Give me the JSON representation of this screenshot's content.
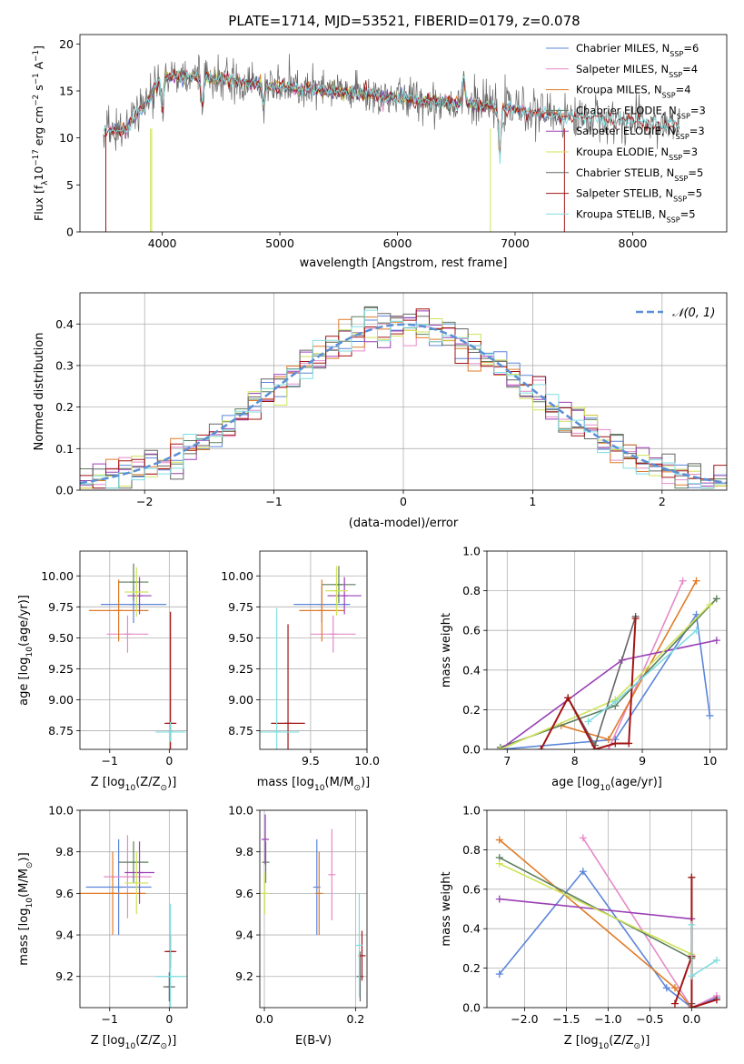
{
  "figure": {
    "title": "PLATE=1714, MJD=53521, FIBERID=0179, z=0.078"
  },
  "model_colors": [
    "#5b85d9",
    "#e58ac8",
    "#e07b28",
    "#5e7f5e",
    "#9a3fb5",
    "#cfe35a",
    "#666666",
    "#a31515",
    "#7fdde0"
  ],
  "chart_data": [
    {
      "id": "spectrum",
      "type": "line",
      "xlabel": "wavelength [Angstrom, rest frame]",
      "ylabel_parts": [
        "Flux [f",
        "λ",
        "10",
        "−17",
        " erg cm",
        "−2",
        " s",
        "−1",
        " A",
        "−1",
        "]"
      ],
      "xlim": [
        3300,
        8800
      ],
      "ylim": [
        0,
        21
      ],
      "xticks": [
        4000,
        5000,
        6000,
        7000,
        8000
      ],
      "yticks": [
        0,
        5,
        10,
        15,
        20
      ],
      "grid": false,
      "legend_position": "upper right",
      "series": [
        {
          "name": "Chabrier MILES, N_SSP=6",
          "label_main": "Chabrier MILES, N",
          "label_sub": "SSP",
          "label_tail": "=6"
        },
        {
          "name": "Salpeter MILES, N_SSP=4",
          "label_main": "Salpeter MILES, N",
          "label_sub": "SSP",
          "label_tail": "=4"
        },
        {
          "name": "Kroupa MILES, N_SSP=4",
          "label_main": "Kroupa MILES, N",
          "label_sub": "SSP",
          "label_tail": "=4"
        },
        {
          "name": "Chabrier ELODIE, N_SSP=3",
          "label_main": "Chabrier ELODIE, N",
          "label_sub": "SSP",
          "label_tail": "=3"
        },
        {
          "name": "Salpeter ELODIE, N_SSP=3",
          "label_main": "Salpeter ELODIE, N",
          "label_sub": "SSP",
          "label_tail": "=3"
        },
        {
          "name": "Kroupa ELODIE, N_SSP=3",
          "label_main": "Kroupa ELODIE, N",
          "label_sub": "SSP",
          "label_tail": "=3"
        },
        {
          "name": "Chabrier STELIB, N_SSP=5",
          "label_main": "Chabrier STELIB, N",
          "label_sub": "SSP",
          "label_tail": "=5"
        },
        {
          "name": "Salpeter STELIB, N_SSP=5",
          "label_main": "Salpeter STELIB, N",
          "label_sub": "SSP",
          "label_tail": "=5"
        },
        {
          "name": "Kroupa STELIB, N_SSP=5",
          "label_main": "Kroupa STELIB, N",
          "label_sub": "SSP",
          "label_tail": "=5"
        }
      ],
      "continuum_x": [
        3500,
        3700,
        3850,
        4000,
        4300,
        4600,
        4900,
        5200,
        5600,
        6000,
        6300,
        6600,
        6900,
        7200,
        7500,
        7800,
        8100,
        8400
      ],
      "continuum_y": [
        10.5,
        11.0,
        13.5,
        16.5,
        16.5,
        16.2,
        15.5,
        15.2,
        14.8,
        14.3,
        13.9,
        13.6,
        13.3,
        12.6,
        12.2,
        12.0,
        11.6,
        11.2
      ]
    },
    {
      "id": "residuals",
      "type": "step",
      "xlabel": "(data-model)/error",
      "ylabel": "Normed distribution",
      "xlim": [
        -2.5,
        2.5
      ],
      "ylim": [
        0,
        0.475
      ],
      "xticks": [
        -2,
        -1,
        0,
        1,
        2
      ],
      "xticklabels": [
        "−2",
        "−1",
        "0",
        "1",
        "2"
      ],
      "yticks": [
        0.0,
        0.1,
        0.2,
        0.3,
        0.4
      ],
      "yticklabels": [
        "0.0",
        "0.1",
        "0.2",
        "0.3",
        "0.4"
      ],
      "grid": true,
      "legend_position": "upper right",
      "reference_curve": {
        "name": "N(0,1)",
        "label": "𝒩(0, 1)",
        "mu": 0,
        "sigma": 1,
        "color": "#5b8fd6"
      },
      "bin_width": 0.1
    },
    {
      "id": "age_vs_Z",
      "type": "errorbar",
      "xlabel_parts": [
        "Z [log",
        "10",
        "(Z/Z",
        "⊙",
        ")]"
      ],
      "ylabel_parts": [
        "age  [log",
        "10",
        "(age/yr)]"
      ],
      "xlim": [
        -1.5,
        0.3
      ],
      "ylim": [
        8.6,
        10.2
      ],
      "xticks": [
        -1,
        0
      ],
      "xticklabels": [
        "−1",
        "0"
      ],
      "yticks": [
        8.75,
        9.0,
        9.25,
        9.5,
        9.75,
        10.0
      ],
      "yticklabels": [
        "8.75",
        "9.00",
        "9.25",
        "9.50",
        "9.75",
        "10.00"
      ],
      "grid": true,
      "points": [
        {
          "model": 0,
          "x": -0.6,
          "xerr": 0.55,
          "y": 9.77,
          "yerr": 0.15
        },
        {
          "model": 1,
          "x": -0.7,
          "xerr": 0.35,
          "y": 9.53,
          "yerr": 0.15
        },
        {
          "model": 2,
          "x": -0.85,
          "xerr": 0.5,
          "y": 9.72,
          "yerr": 0.25
        },
        {
          "model": 3,
          "x": -0.6,
          "xerr": 0.25,
          "y": 9.95,
          "yerr": 0.15
        },
        {
          "model": 4,
          "x": -0.5,
          "xerr": 0.2,
          "y": 9.84,
          "yerr": 0.15
        },
        {
          "model": 5,
          "x": -0.55,
          "xerr": 0.2,
          "y": 9.87,
          "yerr": 0.2
        },
        {
          "model": 7,
          "x": 0.02,
          "xerr": 0.1,
          "y": 8.81,
          "yerr": 0.9
        },
        {
          "model": 8,
          "x": 0.02,
          "xerr": 0.25,
          "y": 8.74,
          "yerr": 0.08
        }
      ]
    },
    {
      "id": "age_vs_mass",
      "type": "errorbar",
      "xlabel_parts": [
        "mass [log",
        "10",
        "(M/M",
        "⊙",
        ")]"
      ],
      "xlim": [
        9.05,
        10.0
      ],
      "ylim": [
        8.6,
        10.2
      ],
      "xticks": [
        9.5,
        10.0
      ],
      "xticklabels": [
        "9.5",
        "10.0"
      ],
      "yticks": [
        8.75,
        9.0,
        9.25,
        9.5,
        9.75,
        10.0
      ],
      "yticklabels": [
        "8.75",
        "9.00",
        "9.25",
        "9.50",
        "9.75",
        "10.00"
      ],
      "grid": true,
      "points": [
        {
          "model": 0,
          "x": 9.6,
          "xerr": 0.25,
          "y": 9.77,
          "yerr": 0.15
        },
        {
          "model": 1,
          "x": 9.7,
          "xerr": 0.2,
          "y": 9.53,
          "yerr": 0.15
        },
        {
          "model": 2,
          "x": 9.6,
          "xerr": 0.2,
          "y": 9.72,
          "yerr": 0.25
        },
        {
          "model": 3,
          "x": 9.75,
          "xerr": 0.15,
          "y": 9.93,
          "yerr": 0.15
        },
        {
          "model": 4,
          "x": 9.8,
          "xerr": 0.15,
          "y": 9.84,
          "yerr": 0.15
        },
        {
          "model": 5,
          "x": 9.73,
          "xerr": 0.1,
          "y": 9.88,
          "yerr": 0.2
        },
        {
          "model": 7,
          "x": 9.3,
          "xerr": 0.15,
          "y": 8.81,
          "yerr": 0.8
        },
        {
          "model": 8,
          "x": 9.2,
          "xerr": 0.2,
          "y": 8.74,
          "yerr": 1.0
        }
      ]
    },
    {
      "id": "weight_vs_age",
      "type": "line",
      "xlabel_parts": [
        "age  [log",
        "10",
        "(age/yr)]"
      ],
      "ylabel": "mass weight",
      "xlim": [
        6.7,
        10.25
      ],
      "ylim": [
        0,
        1.0
      ],
      "xticks": [
        7,
        8,
        9,
        10
      ],
      "xticklabels": [
        "7",
        "8",
        "9",
        "10"
      ],
      "yticks": [
        0.0,
        0.2,
        0.4,
        0.6,
        0.8,
        1.0
      ],
      "yticklabels": [
        "0.0",
        "0.2",
        "0.4",
        "0.6",
        "0.8",
        "1.0"
      ],
      "grid": true,
      "series": [
        {
          "model": 0,
          "x": [
            6.9,
            8.6,
            9.8,
            10.0
          ],
          "y": [
            0.0,
            0.05,
            0.68,
            0.17
          ]
        },
        {
          "model": 1,
          "x": [
            8.5,
            9.6
          ],
          "y": [
            0.0,
            0.85
          ]
        },
        {
          "model": 2,
          "x": [
            7.8,
            8.5,
            9.8
          ],
          "y": [
            0.12,
            0.05,
            0.85
          ]
        },
        {
          "model": 3,
          "x": [
            6.9,
            8.6,
            10.1
          ],
          "y": [
            0.01,
            0.22,
            0.76
          ]
        },
        {
          "model": 4,
          "x": [
            6.9,
            8.7,
            10.1
          ],
          "y": [
            0.0,
            0.45,
            0.55
          ]
        },
        {
          "model": 5,
          "x": [
            6.9,
            8.6,
            10.0
          ],
          "y": [
            0.0,
            0.25,
            0.73
          ]
        },
        {
          "model": 6,
          "x": [
            7.9,
            8.3,
            8.9
          ],
          "y": [
            0.26,
            0.02,
            0.67
          ]
        },
        {
          "model": 7,
          "x": [
            7.5,
            7.9,
            8.3,
            8.6,
            8.8,
            8.9
          ],
          "y": [
            0.0,
            0.26,
            0.0,
            0.03,
            0.03,
            0.66
          ]
        },
        {
          "model": 8,
          "x": [
            8.2,
            8.6,
            9.8
          ],
          "y": [
            0.14,
            0.24,
            0.6
          ]
        }
      ]
    },
    {
      "id": "mass_vs_Z",
      "type": "errorbar",
      "xlabel_parts": [
        "Z [log",
        "10",
        "(Z/Z",
        "⊙",
        ")]"
      ],
      "ylabel_parts": [
        "mass [log",
        "10",
        "(M/M",
        "⊙",
        ")]"
      ],
      "xlim": [
        -1.5,
        0.3
      ],
      "ylim": [
        9.05,
        10.0
      ],
      "xticks": [
        -1,
        0
      ],
      "xticklabels": [
        "−1",
        "0"
      ],
      "yticks": [
        9.2,
        9.4,
        9.6,
        9.8,
        10.0
      ],
      "yticklabels": [
        "9.2",
        "9.4",
        "9.6",
        "9.8",
        "10.0"
      ],
      "grid": true,
      "points": [
        {
          "model": 0,
          "x": -0.85,
          "xerr": 0.55,
          "y": 9.63,
          "yerr": 0.23
        },
        {
          "model": 1,
          "x": -0.7,
          "xerr": 0.4,
          "y": 9.68,
          "yerr": 0.2
        },
        {
          "model": 2,
          "x": -0.95,
          "xerr": 0.55,
          "y": 9.6,
          "yerr": 0.2
        },
        {
          "model": 3,
          "x": -0.6,
          "xerr": 0.25,
          "y": 9.75,
          "yerr": 0.1
        },
        {
          "model": 4,
          "x": -0.5,
          "xerr": 0.25,
          "y": 9.7,
          "yerr": 0.15
        },
        {
          "model": 5,
          "x": -0.55,
          "xerr": 0.2,
          "y": 9.65,
          "yerr": 0.15
        },
        {
          "model": 6,
          "x": 0.0,
          "xerr": 0.1,
          "y": 9.15,
          "yerr": 0.07
        },
        {
          "model": 7,
          "x": 0.02,
          "xerr": 0.1,
          "y": 9.32,
          "yerr": 0.08
        },
        {
          "model": 8,
          "x": 0.02,
          "xerr": 0.25,
          "y": 9.2,
          "yerr": 0.35
        }
      ]
    },
    {
      "id": "mass_vs_ebv",
      "type": "errorbar",
      "xlabel": "E(B-V)",
      "xlim": [
        -0.01,
        0.225
      ],
      "ylim": [
        9.05,
        10.0
      ],
      "xticks": [
        0.0,
        0.2
      ],
      "xticklabels": [
        "0.0",
        "0.2"
      ],
      "yticks": [
        9.2,
        9.4,
        9.6,
        9.8,
        10.0
      ],
      "yticklabels": [
        "9.2",
        "9.4",
        "9.6",
        "9.8",
        "10.0"
      ],
      "grid": true,
      "points": [
        {
          "model": 0,
          "x": 0.115,
          "xerr": 0.0,
          "y": 9.63,
          "yerr": 0.23
        },
        {
          "model": 1,
          "x": 0.148,
          "xerr": 0.0,
          "y": 9.69,
          "yerr": 0.22
        },
        {
          "model": 2,
          "x": 0.12,
          "xerr": 0.0,
          "y": 9.6,
          "yerr": 0.2
        },
        {
          "model": 3,
          "x": 0.003,
          "xerr": 0.0,
          "y": 9.75,
          "yerr": 0.1
        },
        {
          "model": 4,
          "x": 0.002,
          "xerr": 0.0,
          "y": 9.86,
          "yerr": 0.12
        },
        {
          "model": 5,
          "x": 0.001,
          "xerr": 0.0,
          "y": 9.6,
          "yerr": 0.1
        },
        {
          "model": 6,
          "x": 0.21,
          "xerr": 0.0,
          "y": 9.2,
          "yerr": 0.12
        },
        {
          "model": 7,
          "x": 0.214,
          "xerr": 0.0,
          "y": 9.3,
          "yerr": 0.12
        },
        {
          "model": 8,
          "x": 0.208,
          "xerr": 0.0,
          "y": 9.35,
          "yerr": 0.25
        }
      ]
    },
    {
      "id": "weight_vs_Z",
      "type": "line",
      "xlabel_parts": [
        "Z [log",
        "10",
        "(Z/Z",
        "⊙",
        ")]"
      ],
      "ylabel": "mass weight",
      "xlim": [
        -2.45,
        0.42
      ],
      "ylim": [
        0,
        1.0
      ],
      "xticks": [
        -2.0,
        -1.5,
        -1.0,
        -0.5,
        0.0
      ],
      "xticklabels": [
        "−2.0",
        "−1.5",
        "−1.0",
        "−0.5",
        "0.0"
      ],
      "yticks": [
        0.0,
        0.2,
        0.4,
        0.6,
        0.8,
        1.0
      ],
      "yticklabels": [
        "0.0",
        "0.2",
        "0.4",
        "0.6",
        "0.8",
        "1.0"
      ],
      "grid": true,
      "series": [
        {
          "model": 0,
          "x": [
            -2.3,
            -1.3,
            -0.3,
            0.0,
            0.3
          ],
          "y": [
            0.17,
            0.69,
            0.1,
            0.0,
            0.05
          ]
        },
        {
          "model": 1,
          "x": [
            -1.3,
            0.0,
            0.3
          ],
          "y": [
            0.86,
            0.0,
            0.06
          ]
        },
        {
          "model": 2,
          "x": [
            -2.3,
            -0.2,
            0.0
          ],
          "y": [
            0.85,
            0.1,
            0.0
          ]
        },
        {
          "model": 3,
          "x": [
            -2.3,
            0.0,
            0.0
          ],
          "y": [
            0.76,
            0.25,
            0.0
          ]
        },
        {
          "model": 4,
          "x": [
            -2.3,
            0.0
          ],
          "y": [
            0.55,
            0.45
          ]
        },
        {
          "model": 5,
          "x": [
            -2.3,
            0.0
          ],
          "y": [
            0.73,
            0.27
          ]
        },
        {
          "model": 6,
          "x": [
            0.0,
            0.0,
            0.0
          ],
          "y": [
            0.66,
            0.02,
            0.26
          ]
        },
        {
          "model": 7,
          "x": [
            -0.2,
            0.0,
            0.0,
            0.0,
            0.3
          ],
          "y": [
            0.02,
            0.26,
            0.66,
            0.0,
            0.04
          ]
        },
        {
          "model": 8,
          "x": [
            0.0,
            0.0,
            0.3
          ],
          "y": [
            0.42,
            0.16,
            0.24
          ]
        }
      ]
    }
  ]
}
